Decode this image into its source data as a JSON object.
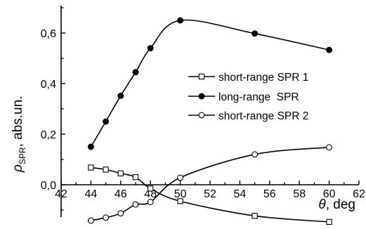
{
  "chart_data": {
    "type": "line",
    "title": "",
    "xlabel_symbol": "θ",
    "xlabel_unit": ", deg",
    "ylabel_main": "ρ",
    "ylabel_sub": "SPR",
    "ylabel_rest": ", abs.un.",
    "xlim": [
      42,
      62
    ],
    "ylim": [
      -0.15,
      0.72
    ],
    "x_ticks": [
      42,
      44,
      46,
      48,
      50,
      52,
      54,
      56,
      58,
      60,
      62
    ],
    "x_tick_labels": [
      "42",
      "44",
      "46",
      "48",
      "50",
      "52",
      "54",
      "56",
      "58",
      "60",
      "62"
    ],
    "y_ticks": [
      0.0,
      0.2,
      0.4,
      0.6
    ],
    "y_tick_labels": [
      "0,0",
      "0,2",
      "0,4",
      "0,6"
    ],
    "grid": false,
    "legend_position": "center-right",
    "series": [
      {
        "name": "short-range SPR 1",
        "marker": "open-square",
        "x": [
          44,
          45,
          46,
          47,
          48,
          50,
          55,
          60
        ],
        "y": [
          0.068,
          0.06,
          0.045,
          0.03,
          -0.015,
          -0.065,
          -0.123,
          -0.147
        ]
      },
      {
        "name": "long-range  SPR",
        "marker": "filled-circle",
        "x": [
          44,
          45,
          46,
          47,
          48,
          50,
          55,
          60
        ],
        "y": [
          0.15,
          0.25,
          0.352,
          0.445,
          0.54,
          0.65,
          0.598,
          0.533
        ]
      },
      {
        "name": "short-range SPR 2",
        "marker": "open-circle",
        "x": [
          44,
          45,
          46,
          47,
          48,
          50,
          55,
          60
        ],
        "y": [
          -0.142,
          -0.13,
          -0.113,
          -0.078,
          -0.068,
          0.028,
          0.12,
          0.148
        ]
      }
    ]
  }
}
